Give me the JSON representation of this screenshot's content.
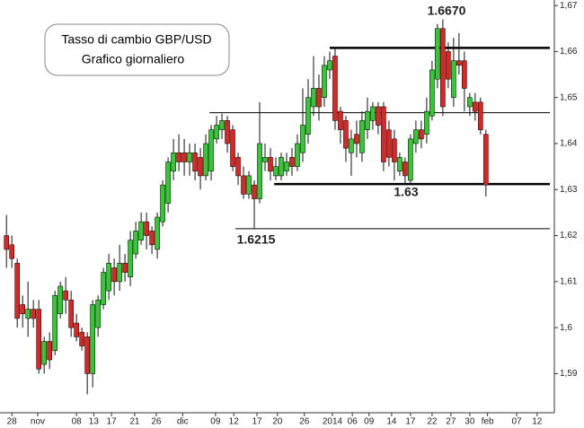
{
  "chart_data": {
    "type": "candlestick",
    "title": "Tasso di cambio GBP/USD",
    "subtitle": "Grafico giornaliero",
    "up_color": "#2ecc2e",
    "down_color": "#e32222",
    "open": [
      1.62,
      1.618,
      1.614,
      1.605,
      1.602,
      1.604,
      1.604,
      1.592,
      1.597,
      1.595,
      1.603,
      1.608,
      1.606,
      1.601,
      1.599,
      1.598,
      1.59,
      1.6,
      1.605,
      1.608,
      1.613,
      1.61,
      1.614,
      1.611,
      1.616,
      1.619,
      1.623,
      1.621,
      1.617,
      1.623,
      1.627,
      1.634,
      1.638,
      1.638,
      1.636,
      1.638,
      1.637,
      1.633,
      1.634,
      1.641,
      1.643,
      1.645,
      1.643,
      1.637,
      1.633,
      1.629,
      1.631,
      1.628,
      1.636,
      1.637,
      1.633,
      1.633,
      1.634,
      1.637,
      1.635,
      1.638,
      1.642,
      1.648,
      1.652,
      1.65,
      1.656,
      1.659,
      1.647,
      1.645,
      1.638,
      1.642,
      1.638,
      1.643,
      1.645,
      1.648,
      1.648,
      1.643,
      1.641,
      1.634,
      1.636,
      1.632,
      1.64,
      1.643,
      1.642,
      1.646,
      1.654,
      1.665,
      1.66,
      1.65,
      1.658,
      1.658,
      1.648,
      1.649,
      1.649,
      1.642
    ],
    "high": [
      1.6245,
      1.62,
      1.615,
      1.607,
      1.61,
      1.606,
      1.606,
      1.598,
      1.599,
      1.608,
      1.61,
      1.611,
      1.608,
      1.603,
      1.6,
      1.599,
      1.606,
      1.607,
      1.613,
      1.616,
      1.615,
      1.618,
      1.616,
      1.621,
      1.623,
      1.625,
      1.625,
      1.622,
      1.625,
      1.632,
      1.637,
      1.641,
      1.642,
      1.641,
      1.64,
      1.64,
      1.639,
      1.642,
      1.644,
      1.646,
      1.6465,
      1.646,
      1.644,
      1.638,
      1.635,
      1.634,
      1.632,
      1.649,
      1.64,
      1.639,
      1.637,
      1.638,
      1.638,
      1.639,
      1.642,
      1.652,
      1.654,
      1.659,
      1.655,
      1.659,
      1.66,
      1.661,
      1.648,
      1.646,
      1.643,
      1.645,
      1.647,
      1.65,
      1.649,
      1.649,
      1.649,
      1.645,
      1.643,
      1.638,
      1.637,
      1.642,
      1.645,
      1.645,
      1.65,
      1.658,
      1.666,
      1.667,
      1.662,
      1.663,
      1.664,
      1.66,
      1.651,
      1.651,
      1.65,
      1.643
    ],
    "low": [
      1.613,
      1.613,
      1.6,
      1.6,
      1.598,
      1.6,
      1.59,
      1.59,
      1.591,
      1.594,
      1.602,
      1.603,
      1.598,
      1.597,
      1.595,
      1.5855,
      1.587,
      1.598,
      1.604,
      1.606,
      1.607,
      1.608,
      1.61,
      1.609,
      1.615,
      1.618,
      1.617,
      1.616,
      1.615,
      1.622,
      1.625,
      1.632,
      1.634,
      1.633,
      1.633,
      1.632,
      1.63,
      1.632,
      1.632,
      1.64,
      1.641,
      1.638,
      1.634,
      1.631,
      1.628,
      1.628,
      1.6215,
      1.627,
      1.634,
      1.632,
      1.632,
      1.632,
      1.633,
      1.633,
      1.634,
      1.636,
      1.64,
      1.646,
      1.645,
      1.648,
      1.654,
      1.643,
      1.64,
      1.636,
      1.633,
      1.637,
      1.636,
      1.641,
      1.643,
      1.642,
      1.634,
      1.635,
      1.632,
      1.633,
      1.631,
      1.631,
      1.638,
      1.639,
      1.64,
      1.645,
      1.652,
      1.646,
      1.652,
      1.648,
      1.655,
      1.647,
      1.646,
      1.645,
      1.642,
      1.6285
    ],
    "close": [
      1.617,
      1.615,
      1.602,
      1.603,
      1.604,
      1.602,
      1.591,
      1.597,
      1.593,
      1.607,
      1.609,
      1.606,
      1.6,
      1.598,
      1.596,
      1.59,
      1.605,
      1.606,
      1.612,
      1.614,
      1.61,
      1.614,
      1.612,
      1.619,
      1.621,
      1.623,
      1.62,
      1.618,
      1.624,
      1.631,
      1.636,
      1.638,
      1.636,
      1.636,
      1.638,
      1.634,
      1.633,
      1.64,
      1.643,
      1.644,
      1.645,
      1.64,
      1.635,
      1.633,
      1.629,
      1.633,
      1.628,
      1.64,
      1.637,
      1.634,
      1.635,
      1.637,
      1.636,
      1.635,
      1.64,
      1.644,
      1.65,
      1.652,
      1.648,
      1.657,
      1.658,
      1.645,
      1.643,
      1.639,
      1.641,
      1.64,
      1.645,
      1.647,
      1.648,
      1.644,
      1.636,
      1.637,
      1.636,
      1.637,
      1.633,
      1.641,
      1.643,
      1.641,
      1.647,
      1.656,
      1.665,
      1.648,
      1.654,
      1.658,
      1.657,
      1.652,
      1.65,
      1.647,
      1.643,
      1.631
    ],
    "xlim": [
      -1.2,
      101.7
    ],
    "xticks": [
      {
        "value": 1,
        "label": "28"
      },
      {
        "value": 5.8,
        "label": "nov"
      },
      {
        "value": 13,
        "label": "08"
      },
      {
        "value": 16.2,
        "label": "13"
      },
      {
        "value": 19.5,
        "label": "17"
      },
      {
        "value": 23.8,
        "label": "21"
      },
      {
        "value": 27.8,
        "label": "26"
      },
      {
        "value": 32.7,
        "label": "dic"
      },
      {
        "value": 38.8,
        "label": "09"
      },
      {
        "value": 42.2,
        "label": "12"
      },
      {
        "value": 46.5,
        "label": "17"
      },
      {
        "value": 50.3,
        "label": "20"
      },
      {
        "value": 55.3,
        "label": "26"
      },
      {
        "value": 60.5,
        "label": "2014"
      },
      {
        "value": 64.2,
        "label": "06"
      },
      {
        "value": 67.3,
        "label": "09"
      },
      {
        "value": 71.5,
        "label": "14"
      },
      {
        "value": 75,
        "label": "17"
      },
      {
        "value": 79,
        "label": "22"
      },
      {
        "value": 82.5,
        "label": "27"
      },
      {
        "value": 86,
        "label": "30"
      },
      {
        "value": 89.3,
        "label": "feb"
      },
      {
        "value": 94.7,
        "label": "07"
      },
      {
        "value": 98.5,
        "label": "12"
      }
    ],
    "ylim": [
      1.5815,
      1.6712
    ],
    "yticks": [
      {
        "value": 1.59,
        "label": "1,59"
      },
      {
        "value": 1.6,
        "label": "1,6"
      },
      {
        "value": 1.61,
        "label": "1,61"
      },
      {
        "value": 1.62,
        "label": "1,62"
      },
      {
        "value": 1.63,
        "label": "1,63"
      },
      {
        "value": 1.64,
        "label": "1,64"
      },
      {
        "value": 1.65,
        "label": "1,65"
      },
      {
        "value": 1.66,
        "label": "1,66"
      },
      {
        "value": 1.67,
        "label": "1,67"
      }
    ],
    "levels": [
      {
        "value": 1.6608,
        "start": 60,
        "bold": true
      },
      {
        "value": 1.6467,
        "start": 37.7,
        "bold": false
      },
      {
        "value": 1.6312,
        "start": 49.7,
        "bold": true
      },
      {
        "value": 1.6215,
        "start": 42.5,
        "bold": false
      }
    ],
    "annotations": [
      "1.6670",
      "1.63",
      "1.6215"
    ]
  }
}
